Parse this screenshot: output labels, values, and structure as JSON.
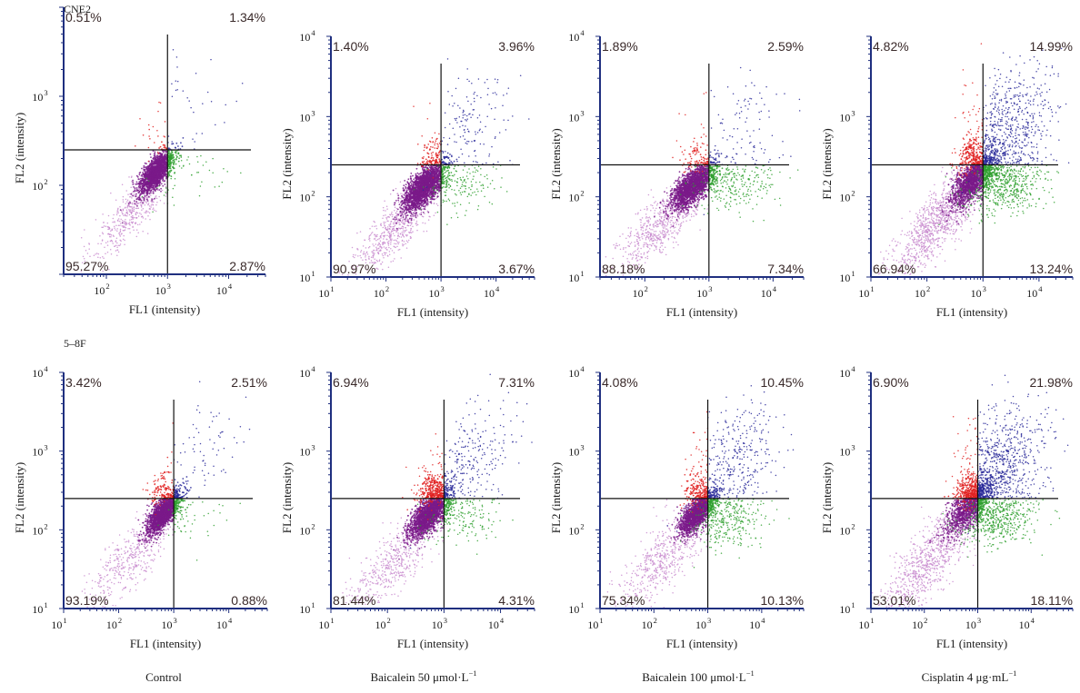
{
  "row_labels": [
    "CNE2",
    "5–8F"
  ],
  "column_labels": [
    {
      "text": "Control",
      "unit": ""
    },
    {
      "text": "Baicalein 50 μmol·L",
      "unit": "−1"
    },
    {
      "text": "Baicalein 100 μmol·L",
      "unit": "−1"
    },
    {
      "text": "Cisplatin 4 μg·mL",
      "unit": "−1"
    }
  ],
  "colors": {
    "live": "#7a1a8a",
    "live_faint": "#c98ccf",
    "early_apoptotic": "#2fa02f",
    "late_apoptotic": "#2a2a9a",
    "necrotic": "#e02020",
    "gate": "#111111",
    "axis": "#1f2f7f"
  },
  "chart_data": [
    {
      "type": "scatter",
      "row": "CNE2",
      "condition": "Control",
      "xlabel": "FL1 (intensity)",
      "ylabel": "FL2 (intensity)",
      "xscale": "log",
      "yscale": "log",
      "xticks": [
        {
          "base": "10",
          "exp": "2"
        },
        {
          "base": "10",
          "exp": "3"
        },
        {
          "base": "10",
          "exp": "4"
        }
      ],
      "yticks": [
        {
          "base": "10",
          "exp": "2"
        },
        {
          "base": "10",
          "exp": "3"
        }
      ],
      "xlim": [
        20,
        40000
      ],
      "ylim": [
        10,
        10000
      ],
      "gate": {
        "x": 1000,
        "y": 250
      },
      "quadrants": {
        "upper_left": "0.51%",
        "upper_right": "1.34%",
        "lower_left": "95.27%",
        "lower_right": "2.87%"
      }
    },
    {
      "type": "scatter",
      "row": "CNE2",
      "condition": "Baicalein 50",
      "xlabel": "FL1 (intensity)",
      "ylabel": "FL2 (intensity)",
      "xscale": "log",
      "yscale": "log",
      "xticks": [
        {
          "base": "10",
          "exp": "1"
        },
        {
          "base": "10",
          "exp": "2"
        },
        {
          "base": "10",
          "exp": "3"
        },
        {
          "base": "10",
          "exp": "4"
        }
      ],
      "yticks": [
        {
          "base": "10",
          "exp": "1"
        },
        {
          "base": "10",
          "exp": "2"
        },
        {
          "base": "10",
          "exp": "3"
        },
        {
          "base": "10",
          "exp": "4"
        }
      ],
      "xlim": [
        10,
        50000
      ],
      "ylim": [
        10,
        10000
      ],
      "gate": {
        "x": 1000,
        "y": 250
      },
      "quadrants": {
        "upper_left": "1.40%",
        "upper_right": "3.96%",
        "lower_left": "90.97%",
        "lower_right": "3.67%"
      }
    },
    {
      "type": "scatter",
      "row": "CNE2",
      "condition": "Baicalein 100",
      "xlabel": "FL1 (intensity)",
      "ylabel": "FL2 (intensity)",
      "xscale": "log",
      "yscale": "log",
      "xticks": [
        {
          "base": "10",
          "exp": "2"
        },
        {
          "base": "10",
          "exp": "3"
        },
        {
          "base": "10",
          "exp": "4"
        }
      ],
      "yticks": [
        {
          "base": "10",
          "exp": "1"
        },
        {
          "base": "10",
          "exp": "2"
        },
        {
          "base": "10",
          "exp": "3"
        },
        {
          "base": "10",
          "exp": "4"
        }
      ],
      "xlim": [
        20,
        30000
      ],
      "ylim": [
        10,
        10000
      ],
      "gate": {
        "x": 1000,
        "y": 250
      },
      "quadrants": {
        "upper_left": "1.89%",
        "upper_right": "2.59%",
        "lower_left": "88.18%",
        "lower_right": "7.34%"
      }
    },
    {
      "type": "scatter",
      "row": "CNE2",
      "condition": "Cisplatin 4",
      "xlabel": "FL1 (intensity)",
      "ylabel": "FL2 (intensity)",
      "xscale": "log",
      "yscale": "log",
      "xticks": [
        {
          "base": "10",
          "exp": "1"
        },
        {
          "base": "10",
          "exp": "2"
        },
        {
          "base": "10",
          "exp": "3"
        },
        {
          "base": "10",
          "exp": "4"
        }
      ],
      "yticks": [
        {
          "base": "10",
          "exp": "1"
        },
        {
          "base": "10",
          "exp": "2"
        },
        {
          "base": "10",
          "exp": "3"
        }
      ],
      "xlim": [
        10,
        40000
      ],
      "ylim": [
        10,
        10000
      ],
      "gate": {
        "x": 1000,
        "y": 250
      },
      "quadrants": {
        "upper_left": "4.82%",
        "upper_right": "14.99%",
        "lower_left": "66.94%",
        "lower_right": "13.24%"
      }
    },
    {
      "type": "scatter",
      "row": "5–8F",
      "condition": "Control",
      "xlabel": "FL1 (intensity)",
      "ylabel": "FL2 (intensity)",
      "xscale": "log",
      "yscale": "log",
      "xticks": [
        {
          "base": "10",
          "exp": "1"
        },
        {
          "base": "10",
          "exp": "2"
        },
        {
          "base": "10",
          "exp": "3"
        },
        {
          "base": "10",
          "exp": "4"
        }
      ],
      "yticks": [
        {
          "base": "10",
          "exp": "1"
        },
        {
          "base": "10",
          "exp": "2"
        },
        {
          "base": "10",
          "exp": "3"
        },
        {
          "base": "10",
          "exp": "4"
        }
      ],
      "xlim": [
        10,
        50000
      ],
      "ylim": [
        10,
        10000
      ],
      "gate": {
        "x": 1000,
        "y": 250
      },
      "quadrants": {
        "upper_left": "3.42%",
        "upper_right": "2.51%",
        "lower_left": "93.19%",
        "lower_right": "0.88%"
      }
    },
    {
      "type": "scatter",
      "row": "5–8F",
      "condition": "Baicalein 50",
      "xlabel": "FL1 (intensity)",
      "ylabel": "FL2 (intensity)",
      "xscale": "log",
      "yscale": "log",
      "xticks": [
        {
          "base": "10",
          "exp": "1"
        },
        {
          "base": "10",
          "exp": "2"
        },
        {
          "base": "10",
          "exp": "3"
        },
        {
          "base": "10",
          "exp": "4"
        }
      ],
      "yticks": [
        {
          "base": "10",
          "exp": "1"
        },
        {
          "base": "10",
          "exp": "2"
        },
        {
          "base": "10",
          "exp": "3"
        },
        {
          "base": "10",
          "exp": "4"
        }
      ],
      "xlim": [
        10,
        40000
      ],
      "ylim": [
        10,
        10000
      ],
      "gate": {
        "x": 1000,
        "y": 250
      },
      "quadrants": {
        "upper_left": "6.94%",
        "upper_right": "7.31%",
        "lower_left": "81.44%",
        "lower_right": "4.31%"
      }
    },
    {
      "type": "scatter",
      "row": "5–8F",
      "condition": "Baicalein 100",
      "xlabel": "FL1 (intensity)",
      "ylabel": "FL2 (intensity)",
      "xscale": "log",
      "yscale": "log",
      "xticks": [
        {
          "base": "10",
          "exp": "1"
        },
        {
          "base": "10",
          "exp": "2"
        },
        {
          "base": "10",
          "exp": "3"
        },
        {
          "base": "10",
          "exp": "4"
        }
      ],
      "yticks": [
        {
          "base": "10",
          "exp": "1"
        },
        {
          "base": "10",
          "exp": "2"
        },
        {
          "base": "10",
          "exp": "3"
        },
        {
          "base": "10",
          "exp": "4"
        }
      ],
      "xlim": [
        10,
        60000
      ],
      "ylim": [
        10,
        10000
      ],
      "gate": {
        "x": 1000,
        "y": 250
      },
      "quadrants": {
        "upper_left": "4.08%",
        "upper_right": "10.45%",
        "lower_left": "75.34%",
        "lower_right": "10.13%"
      }
    },
    {
      "type": "scatter",
      "row": "5–8F",
      "condition": "Cisplatin 4",
      "xlabel": "FL1 (intensity)",
      "ylabel": "FL2 (intensity)",
      "xscale": "log",
      "yscale": "log",
      "xticks": [
        {
          "base": "10",
          "exp": "1"
        },
        {
          "base": "10",
          "exp": "2"
        },
        {
          "base": "10",
          "exp": "3"
        },
        {
          "base": "10",
          "exp": "4"
        }
      ],
      "yticks": [
        {
          "base": "10",
          "exp": "1"
        },
        {
          "base": "10",
          "exp": "2"
        },
        {
          "base": "10",
          "exp": "3"
        },
        {
          "base": "10",
          "exp": "4"
        }
      ],
      "xlim": [
        10,
        60000
      ],
      "ylim": [
        10,
        10000
      ],
      "gate": {
        "x": 1000,
        "y": 250
      },
      "quadrants": {
        "upper_left": "6.90%",
        "upper_right": "21.98%",
        "lower_left": "53.01%",
        "lower_right": "18.11%"
      }
    }
  ]
}
